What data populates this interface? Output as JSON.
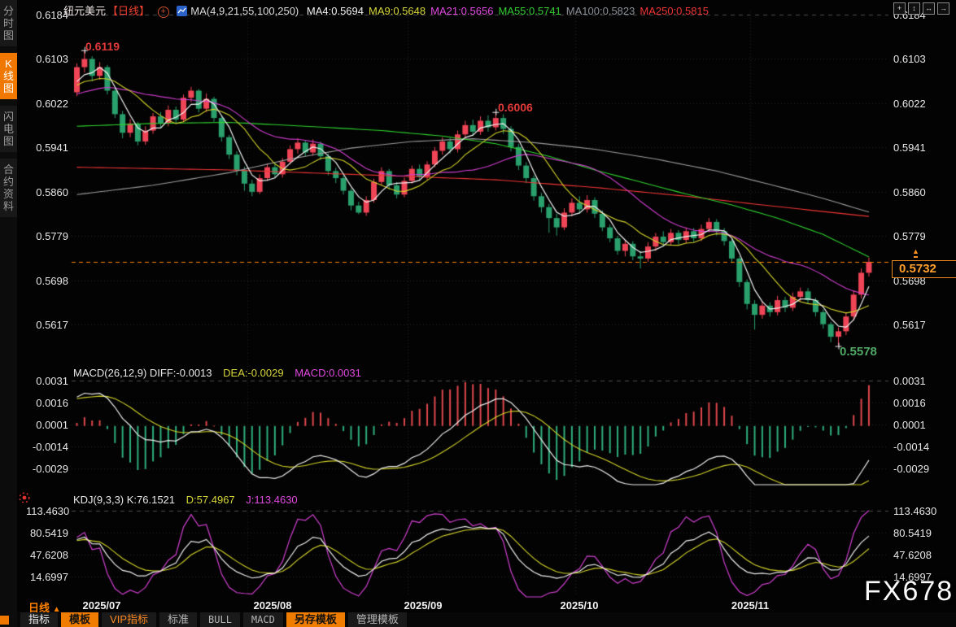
{
  "watermark": "FX678",
  "sidebar": {
    "tabs": [
      {
        "label": "分时图",
        "active": false
      },
      {
        "label": "K线图",
        "active": true
      },
      {
        "label": "闪电图",
        "active": false
      },
      {
        "label": "合约资料",
        "active": false
      }
    ]
  },
  "header": {
    "symbol": "纽元美元",
    "period_tag": "【日线】",
    "plus_glyph": "+",
    "ma_label": "MA(4,9,21,55,100,250)",
    "ma_values": [
      {
        "text": "MA4:0.5694",
        "color": "#f2f2f2"
      },
      {
        "text": "MA9:0.5648",
        "color": "#d6d63a"
      },
      {
        "text": "MA21:0.5656",
        "color": "#e049e0"
      },
      {
        "text": "MA55:0.5741",
        "color": "#33cc33"
      },
      {
        "text": "MA100:0.5823",
        "color": "#8b9196"
      },
      {
        "text": "MA250:0.5815",
        "color": "#f03535"
      }
    ]
  },
  "top_icons": [
    {
      "name": "move-icon",
      "glyph": "+"
    },
    {
      "name": "scale-vertical-icon",
      "glyph": "↕"
    },
    {
      "name": "scale-horizontal-icon",
      "glyph": "↔"
    },
    {
      "name": "exit-icon",
      "glyph": "→"
    }
  ],
  "annotations": {
    "high1": "0.6119",
    "high2": "0.6006",
    "low": "0.5578",
    "last_price": "0.5732",
    "alert_glyph": "▲"
  },
  "price_axis_labels": [
    "0.6184",
    "0.6103",
    "0.6022",
    "0.5941",
    "0.5860",
    "0.5779",
    "0.5698",
    "0.5617"
  ],
  "macd_panel": {
    "title": "MACD(26,12,9) DIFF:-0.0013",
    "dea_label": "DEA:-0.0029",
    "macd_label": "MACD:0.0031",
    "axis_labels": [
      "0.0031",
      "0.0016",
      "0.0001",
      "-0.0014",
      "-0.0029"
    ]
  },
  "kdj_panel": {
    "title": "KDJ(9,3,3) K:76.1521",
    "d_label": "D:57.4967",
    "j_label": "J:113.4630",
    "axis_labels": [
      "113.4630",
      "80.5419",
      "47.6208",
      "14.6997"
    ]
  },
  "xaxis": {
    "period_label": "日线",
    "period_arrow": "▲",
    "months": [
      {
        "label": "2025/07",
        "start_index": 0
      },
      {
        "label": "2025/08",
        "start_index": 23
      },
      {
        "label": "2025/09",
        "start_index": 44
      },
      {
        "label": "2025/10",
        "start_index": 66
      },
      {
        "label": "2025/11",
        "start_index": 89
      }
    ]
  },
  "bottom_tabs": [
    {
      "label": "指标",
      "variant": "white"
    },
    {
      "label": "模板",
      "variant": "active"
    },
    {
      "label": "VIP指标",
      "variant": "orange"
    },
    {
      "label": "标准",
      "variant": "dim"
    },
    {
      "label": "BULL",
      "variant": "mono"
    },
    {
      "label": "MACD",
      "variant": "mono"
    },
    {
      "label": "另存模板",
      "variant": "active"
    },
    {
      "label": "管理模板",
      "variant": "dim"
    }
  ],
  "colors": {
    "accent_orange": "#f07800",
    "up_candle": "#ef4556",
    "down_candle": "#2aa06d",
    "ma4": "#f2f2f2",
    "ma9": "#d4d42a",
    "ma21": "#cf3ecf",
    "ma55": "#2ed32e",
    "ma100": "#9c9c9c",
    "ma250": "#f03535",
    "price_line": "#ff8400",
    "macd_pos": "#e0484e",
    "macd_neg": "#2fae7d",
    "k_line": "#eeeeee",
    "d_line": "#d4d42a",
    "j_line": "#d040d0"
  },
  "chart_data": {
    "type": "candlestick",
    "symbol": "纽元美元",
    "interval": "日线",
    "main_axis_ticks": [
      0.6184,
      0.6103,
      0.6022,
      0.5941,
      0.586,
      0.5779,
      0.5698,
      0.5617
    ],
    "macd_axis_ticks": [
      0.0031,
      0.0016,
      0.0001,
      -0.0014,
      -0.0029
    ],
    "kdj_axis_ticks": [
      113.463,
      80.5419,
      47.6208,
      14.6997
    ],
    "last_price": 0.5732,
    "high_marked": [
      0.6119,
      0.6006
    ],
    "low_marked": 0.5578,
    "month_start_indices": [
      0,
      23,
      44,
      66,
      89
    ],
    "candles": [
      [
        0.6042,
        0.6095,
        0.6035,
        0.6088
      ],
      [
        0.6088,
        0.6119,
        0.6078,
        0.6103
      ],
      [
        0.6103,
        0.6108,
        0.6062,
        0.6072
      ],
      [
        0.6072,
        0.6097,
        0.6065,
        0.6088
      ],
      [
        0.6088,
        0.6092,
        0.6038,
        0.6045
      ],
      [
        0.6045,
        0.605,
        0.5995,
        0.6002
      ],
      [
        0.6002,
        0.6008,
        0.5958,
        0.5968
      ],
      [
        0.5968,
        0.5993,
        0.596,
        0.5985
      ],
      [
        0.5985,
        0.5988,
        0.5945,
        0.5952
      ],
      [
        0.5952,
        0.598,
        0.5946,
        0.5972
      ],
      [
        0.5972,
        0.6004,
        0.5966,
        0.5998
      ],
      [
        0.5998,
        0.6006,
        0.5978,
        0.5985
      ],
      [
        0.5985,
        0.6018,
        0.598,
        0.601
      ],
      [
        0.601,
        0.6016,
        0.5985,
        0.5992
      ],
      [
        0.5992,
        0.6038,
        0.5988,
        0.6032
      ],
      [
        0.6032,
        0.6052,
        0.6024,
        0.6045
      ],
      [
        0.6045,
        0.6048,
        0.6005,
        0.6012
      ],
      [
        0.6012,
        0.604,
        0.6006,
        0.603
      ],
      [
        0.603,
        0.6034,
        0.5988,
        0.5995
      ],
      [
        0.5995,
        0.5999,
        0.5952,
        0.596
      ],
      [
        0.596,
        0.5964,
        0.592,
        0.5928
      ],
      [
        0.5928,
        0.5934,
        0.589,
        0.59
      ],
      [
        0.59,
        0.5906,
        0.5862,
        0.5875
      ],
      [
        0.5875,
        0.5882,
        0.5852,
        0.586
      ],
      [
        0.586,
        0.5892,
        0.5856,
        0.5885
      ],
      [
        0.5885,
        0.5912,
        0.588,
        0.5905
      ],
      [
        0.5905,
        0.5913,
        0.5885,
        0.5892
      ],
      [
        0.5892,
        0.5922,
        0.5886,
        0.5915
      ],
      [
        0.5915,
        0.5945,
        0.591,
        0.5938
      ],
      [
        0.5938,
        0.5958,
        0.593,
        0.595
      ],
      [
        0.595,
        0.5955,
        0.5925,
        0.5932
      ],
      [
        0.5932,
        0.5956,
        0.5926,
        0.5948
      ],
      [
        0.5948,
        0.5952,
        0.5918,
        0.5925
      ],
      [
        0.5925,
        0.593,
        0.589,
        0.5898
      ],
      [
        0.5898,
        0.5904,
        0.5876,
        0.5885
      ],
      [
        0.5885,
        0.589,
        0.5855,
        0.5862
      ],
      [
        0.5862,
        0.5866,
        0.5826,
        0.5835
      ],
      [
        0.5835,
        0.5842,
        0.5819,
        0.5822
      ],
      [
        0.5822,
        0.5852,
        0.5816,
        0.5845
      ],
      [
        0.5845,
        0.5884,
        0.584,
        0.5878
      ],
      [
        0.5878,
        0.5905,
        0.5872,
        0.5898
      ],
      [
        0.5898,
        0.5902,
        0.5864,
        0.5872
      ],
      [
        0.5872,
        0.5878,
        0.5848,
        0.5855
      ],
      [
        0.5855,
        0.5886,
        0.585,
        0.588
      ],
      [
        0.588,
        0.5908,
        0.5875,
        0.5902
      ],
      [
        0.5902,
        0.591,
        0.5882,
        0.5888
      ],
      [
        0.5888,
        0.5916,
        0.5882,
        0.591
      ],
      [
        0.591,
        0.5942,
        0.5905,
        0.5935
      ],
      [
        0.5935,
        0.596,
        0.5928,
        0.5952
      ],
      [
        0.5952,
        0.5958,
        0.593,
        0.5938
      ],
      [
        0.5938,
        0.5972,
        0.5932,
        0.5965
      ],
      [
        0.5965,
        0.599,
        0.5958,
        0.5982
      ],
      [
        0.5982,
        0.5992,
        0.5962,
        0.597
      ],
      [
        0.597,
        0.5998,
        0.5964,
        0.599
      ],
      [
        0.599,
        0.6,
        0.597,
        0.5978
      ],
      [
        0.5978,
        0.6006,
        0.5972,
        0.5995
      ],
      [
        0.5995,
        0.6002,
        0.5966,
        0.5975
      ],
      [
        0.5975,
        0.598,
        0.5934,
        0.5942
      ],
      [
        0.5942,
        0.5948,
        0.59,
        0.5908
      ],
      [
        0.5908,
        0.5914,
        0.5876,
        0.5885
      ],
      [
        0.5885,
        0.589,
        0.5844,
        0.5852
      ],
      [
        0.5852,
        0.5858,
        0.5822,
        0.5832
      ],
      [
        0.5832,
        0.5838,
        0.5785,
        0.5812
      ],
      [
        0.5812,
        0.582,
        0.578,
        0.5795
      ],
      [
        0.5795,
        0.583,
        0.579,
        0.5822
      ],
      [
        0.5822,
        0.5848,
        0.5815,
        0.584
      ],
      [
        0.584,
        0.5852,
        0.582,
        0.5828
      ],
      [
        0.5828,
        0.5854,
        0.5822,
        0.5845
      ],
      [
        0.5845,
        0.585,
        0.5812,
        0.582
      ],
      [
        0.582,
        0.5826,
        0.5788,
        0.5795
      ],
      [
        0.5795,
        0.58,
        0.5768,
        0.5775
      ],
      [
        0.5775,
        0.578,
        0.5745,
        0.5752
      ],
      [
        0.5752,
        0.5772,
        0.5742,
        0.5765
      ],
      [
        0.5765,
        0.577,
        0.5735,
        0.5742
      ],
      [
        0.5742,
        0.5752,
        0.572,
        0.5738
      ],
      [
        0.5738,
        0.5768,
        0.5732,
        0.576
      ],
      [
        0.576,
        0.5785,
        0.5752,
        0.5778
      ],
      [
        0.5778,
        0.5788,
        0.576,
        0.5768
      ],
      [
        0.5768,
        0.5792,
        0.5762,
        0.5785
      ],
      [
        0.5785,
        0.579,
        0.5764,
        0.5772
      ],
      [
        0.5772,
        0.5795,
        0.5766,
        0.5788
      ],
      [
        0.5788,
        0.5794,
        0.5768,
        0.5775
      ],
      [
        0.5775,
        0.58,
        0.577,
        0.5792
      ],
      [
        0.5792,
        0.5812,
        0.5786,
        0.5805
      ],
      [
        0.5805,
        0.581,
        0.578,
        0.5788
      ],
      [
        0.5788,
        0.5794,
        0.5762,
        0.577
      ],
      [
        0.577,
        0.5774,
        0.573,
        0.5738
      ],
      [
        0.5738,
        0.5742,
        0.5686,
        0.5695
      ],
      [
        0.5695,
        0.57,
        0.5645,
        0.5655
      ],
      [
        0.5655,
        0.5662,
        0.5608,
        0.5635
      ],
      [
        0.5635,
        0.566,
        0.5628,
        0.5652
      ],
      [
        0.5652,
        0.5658,
        0.5632,
        0.564
      ],
      [
        0.564,
        0.567,
        0.5634,
        0.5662
      ],
      [
        0.5662,
        0.5668,
        0.564,
        0.5648
      ],
      [
        0.5648,
        0.5676,
        0.5642,
        0.5668
      ],
      [
        0.5668,
        0.5685,
        0.566,
        0.5678
      ],
      [
        0.5678,
        0.5684,
        0.5655,
        0.5662
      ],
      [
        0.5662,
        0.5666,
        0.5632,
        0.564
      ],
      [
        0.564,
        0.5645,
        0.561,
        0.5618
      ],
      [
        0.5618,
        0.5622,
        0.5585,
        0.5595
      ],
      [
        0.5595,
        0.5612,
        0.5578,
        0.5605
      ],
      [
        0.5605,
        0.564,
        0.5598,
        0.5632
      ],
      [
        0.5632,
        0.568,
        0.5625,
        0.5672
      ],
      [
        0.5672,
        0.572,
        0.5665,
        0.5712
      ],
      [
        0.5712,
        0.574,
        0.5705,
        0.5732
      ]
    ],
    "pre_series_closes": [
      0.5958,
      0.5965,
      0.5972,
      0.5968,
      0.5978,
      0.5985,
      0.5992,
      0.5988,
      0.5998,
      0.6005,
      0.6012,
      0.6008,
      0.6018,
      0.6012,
      0.6022,
      0.6028,
      0.6022,
      0.6032,
      0.6038,
      0.6032,
      0.6042,
      0.6048,
      0.6042,
      0.6052,
      0.6058,
      0.6052,
      0.6045,
      0.6052,
      0.6058,
      0.6048
    ],
    "overlays": {
      "ma55_points": [
        [
          0,
          0.598
        ],
        [
          10,
          0.5985
        ],
        [
          20,
          0.5987
        ],
        [
          30,
          0.598
        ],
        [
          40,
          0.5972
        ],
        [
          48,
          0.5962
        ],
        [
          55,
          0.5948
        ],
        [
          62,
          0.5925
        ],
        [
          68,
          0.59
        ],
        [
          74,
          0.5878
        ],
        [
          80,
          0.5856
        ],
        [
          86,
          0.5836
        ],
        [
          92,
          0.5812
        ],
        [
          98,
          0.5782
        ],
        [
          104,
          0.5741
        ]
      ],
      "ma100_points": [
        [
          0,
          0.5855
        ],
        [
          10,
          0.5872
        ],
        [
          20,
          0.5895
        ],
        [
          28,
          0.592
        ],
        [
          36,
          0.594
        ],
        [
          44,
          0.5952
        ],
        [
          52,
          0.5957
        ],
        [
          60,
          0.595
        ],
        [
          68,
          0.5938
        ],
        [
          76,
          0.592
        ],
        [
          84,
          0.5898
        ],
        [
          92,
          0.587
        ],
        [
          98,
          0.5848
        ],
        [
          104,
          0.5823
        ]
      ],
      "ma250_points": [
        [
          0,
          0.5905
        ],
        [
          20,
          0.59
        ],
        [
          40,
          0.589
        ],
        [
          55,
          0.5882
        ],
        [
          68,
          0.5868
        ],
        [
          80,
          0.5852
        ],
        [
          90,
          0.5836
        ],
        [
          104,
          0.5815
        ]
      ]
    }
  }
}
